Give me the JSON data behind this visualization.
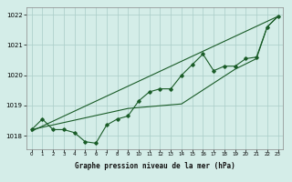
{
  "background_color": "#d4ede8",
  "grid_color": "#aaccc8",
  "line_color": "#1a5c28",
  "xlabel": "Graphe pression niveau de la mer (hPa)",
  "xlim": [
    -0.5,
    23.5
  ],
  "ylim": [
    1017.55,
    1022.25
  ],
  "yticks": [
    1018,
    1019,
    1020,
    1021,
    1022
  ],
  "xticks": [
    0,
    1,
    2,
    3,
    4,
    5,
    6,
    7,
    8,
    9,
    10,
    11,
    12,
    13,
    14,
    15,
    16,
    17,
    18,
    19,
    20,
    21,
    22,
    23
  ],
  "line1_x": [
    0,
    1,
    2,
    3,
    4,
    5,
    6,
    7,
    8,
    9,
    10,
    11,
    12,
    13,
    14,
    15,
    16,
    17,
    18,
    19,
    20,
    21,
    22,
    23
  ],
  "line1_y": [
    1018.2,
    1018.55,
    1018.2,
    1018.2,
    1018.1,
    1017.8,
    1017.75,
    1018.35,
    1018.55,
    1018.65,
    1019.15,
    1019.45,
    1019.55,
    1019.55,
    1020.0,
    1020.35,
    1020.7,
    1020.15,
    1020.3,
    1020.3,
    1020.55,
    1020.6,
    1021.6,
    1021.95
  ],
  "line2_x": [
    0,
    9,
    14,
    19,
    21,
    22,
    23
  ],
  "line2_y": [
    1018.2,
    1018.9,
    1019.05,
    1020.2,
    1020.55,
    1021.6,
    1021.95
  ],
  "line3_x": [
    0,
    23
  ],
  "line3_y": [
    1018.15,
    1021.95
  ]
}
